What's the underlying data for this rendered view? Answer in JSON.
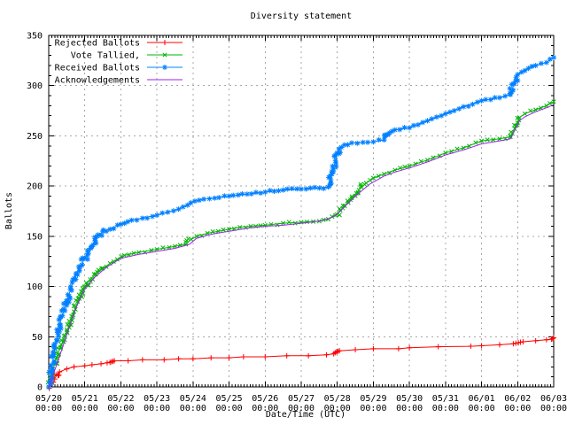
{
  "title": "Diversity statement",
  "axes": {
    "ylabel": "Ballots",
    "xlabel": "Date/Time (UTC)",
    "ylim": [
      0,
      350
    ],
    "y_tick_step": 50,
    "y_minor_step": 10,
    "x_days": [
      0,
      14
    ],
    "x_minor_per_day": 12,
    "y_ticks": [
      0,
      50,
      100,
      150,
      200,
      250,
      300,
      350
    ],
    "x_ticks": [
      {
        "date": "05/20",
        "time": "00:00"
      },
      {
        "date": "05/21",
        "time": "00:00"
      },
      {
        "date": "05/22",
        "time": "00:00"
      },
      {
        "date": "05/23",
        "time": "00:00"
      },
      {
        "date": "05/24",
        "time": "00:00"
      },
      {
        "date": "05/25",
        "time": "00:00"
      },
      {
        "date": "05/26",
        "time": "00:00"
      },
      {
        "date": "05/27",
        "time": "00:00"
      },
      {
        "date": "05/28",
        "time": "00:00"
      },
      {
        "date": "05/29",
        "time": "00:00"
      },
      {
        "date": "05/30",
        "time": "00:00"
      },
      {
        "date": "05/31",
        "time": "00:00"
      },
      {
        "date": "06/01",
        "time": "00:00"
      },
      {
        "date": "06/02",
        "time": "00:00"
      },
      {
        "date": "06/03",
        "time": "00:00"
      }
    ]
  },
  "legend": [
    {
      "label": "Rejected Ballots",
      "color": "#ff0000",
      "marker": "plus"
    },
    {
      "label": "Vote Tallied,",
      "color": "#00b400",
      "marker": "cross"
    },
    {
      "label": "Received Ballots",
      "color": "#0080ff",
      "marker": "star"
    },
    {
      "label": "Acknowledgements",
      "color": "#a020f0",
      "marker": "none"
    }
  ],
  "chart_data": {
    "type": "line",
    "title": "Diversity statement",
    "xlabel": "Date/Time (UTC)",
    "ylabel": "Ballots",
    "ylim": [
      0,
      350
    ],
    "x_unit": "days since 05/20 00:00 UTC",
    "xlim_days": [
      0,
      14
    ],
    "grid": true,
    "legend_position": "top-left",
    "series": [
      {
        "name": "Rejected Ballots",
        "color": "#ff0000",
        "marker": "plus",
        "points": [
          [
            0,
            0
          ],
          [
            0.05,
            4
          ],
          [
            0.12,
            9
          ],
          [
            0.2,
            12
          ],
          [
            0.3,
            15
          ],
          [
            0.5,
            18
          ],
          [
            0.7,
            20
          ],
          [
            1.0,
            21
          ],
          [
            1.2,
            22
          ],
          [
            1.45,
            23
          ],
          [
            1.62,
            24
          ],
          [
            1.7,
            24.5
          ],
          [
            1.74,
            25
          ],
          [
            1.78,
            25.5
          ],
          [
            1.82,
            26
          ],
          [
            2.2,
            26
          ],
          [
            2.6,
            27
          ],
          [
            3.2,
            27
          ],
          [
            3.6,
            28
          ],
          [
            4.0,
            28
          ],
          [
            4.5,
            29
          ],
          [
            5.0,
            29
          ],
          [
            5.4,
            30
          ],
          [
            6.0,
            30
          ],
          [
            6.6,
            31
          ],
          [
            7.2,
            31
          ],
          [
            7.7,
            32
          ],
          [
            7.9,
            33
          ],
          [
            7.94,
            34
          ],
          [
            7.98,
            35
          ],
          [
            8.02,
            35.5
          ],
          [
            8.06,
            36
          ],
          [
            8.5,
            37
          ],
          [
            9.0,
            38
          ],
          [
            9.7,
            38
          ],
          [
            10.0,
            39
          ],
          [
            10.8,
            40
          ],
          [
            11.7,
            40.5
          ],
          [
            12.0,
            41
          ],
          [
            12.5,
            42
          ],
          [
            12.88,
            43
          ],
          [
            12.95,
            43.5
          ],
          [
            13.02,
            44
          ],
          [
            13.08,
            44.5
          ],
          [
            13.15,
            45
          ],
          [
            13.5,
            46
          ],
          [
            13.8,
            47
          ],
          [
            13.94,
            47.5
          ],
          [
            13.97,
            48
          ],
          [
            14.0,
            49
          ]
        ]
      },
      {
        "name": "Vote Tallied,",
        "color": "#00b400",
        "marker": "cross",
        "points": [
          [
            0,
            0
          ],
          [
            0.08,
            12
          ],
          [
            0.2,
            28
          ],
          [
            0.35,
            42
          ],
          [
            0.5,
            55
          ],
          [
            0.7,
            75
          ],
          [
            0.85,
            88
          ],
          [
            1.0,
            100
          ],
          [
            1.15,
            107
          ],
          [
            1.3,
            112
          ],
          [
            1.5,
            118
          ],
          [
            1.7,
            123
          ],
          [
            1.9,
            127
          ],
          [
            2.1,
            131
          ],
          [
            2.5,
            134
          ],
          [
            3.0,
            137
          ],
          [
            3.5,
            140
          ],
          [
            3.8,
            142
          ],
          [
            3.95,
            147
          ],
          [
            4.1,
            150
          ],
          [
            4.4,
            153
          ],
          [
            4.7,
            155
          ],
          [
            5.0,
            157
          ],
          [
            5.3,
            159
          ],
          [
            5.6,
            160
          ],
          [
            6.0,
            161
          ],
          [
            6.5,
            163
          ],
          [
            7.0,
            164
          ],
          [
            7.5,
            165
          ],
          [
            7.75,
            167
          ],
          [
            7.95,
            171
          ],
          [
            8.15,
            178
          ],
          [
            8.4,
            188
          ],
          [
            8.6,
            196
          ],
          [
            8.8,
            203
          ],
          [
            9.0,
            208
          ],
          [
            9.3,
            212
          ],
          [
            9.6,
            216
          ],
          [
            10.0,
            220
          ],
          [
            10.5,
            226
          ],
          [
            11.0,
            233
          ],
          [
            11.5,
            238
          ],
          [
            12.0,
            245
          ],
          [
            12.5,
            247
          ],
          [
            12.8,
            249
          ],
          [
            12.95,
            260
          ],
          [
            13.05,
            268
          ],
          [
            13.2,
            272
          ],
          [
            13.5,
            276
          ],
          [
            13.8,
            280
          ],
          [
            14.0,
            284
          ]
        ]
      },
      {
        "name": "Received Ballots",
        "color": "#0080ff",
        "marker": "star",
        "points": [
          [
            0,
            0
          ],
          [
            0.08,
            18
          ],
          [
            0.17,
            38
          ],
          [
            0.3,
            62
          ],
          [
            0.5,
            85
          ],
          [
            0.7,
            108
          ],
          [
            0.85,
            118
          ],
          [
            1.0,
            128
          ],
          [
            1.1,
            133
          ],
          [
            1.2,
            140
          ],
          [
            1.35,
            150
          ],
          [
            1.5,
            155
          ],
          [
            1.7,
            157
          ],
          [
            2.0,
            162
          ],
          [
            2.3,
            166
          ],
          [
            2.6,
            168
          ],
          [
            3.0,
            171
          ],
          [
            3.3,
            174
          ],
          [
            3.6,
            177
          ],
          [
            3.85,
            181
          ],
          [
            4.05,
            185
          ],
          [
            4.3,
            187
          ],
          [
            4.6,
            188
          ],
          [
            5.0,
            190
          ],
          [
            5.5,
            192
          ],
          [
            6.0,
            194
          ],
          [
            6.5,
            196
          ],
          [
            7.0,
            197
          ],
          [
            7.5,
            198
          ],
          [
            7.75,
            199
          ],
          [
            7.85,
            212
          ],
          [
            7.95,
            225
          ],
          [
            8.05,
            237
          ],
          [
            8.2,
            241
          ],
          [
            8.4,
            243
          ],
          [
            9.0,
            244
          ],
          [
            9.3,
            246
          ],
          [
            9.45,
            253
          ],
          [
            9.6,
            256
          ],
          [
            10.0,
            258
          ],
          [
            10.5,
            265
          ],
          [
            11.0,
            272
          ],
          [
            11.5,
            279
          ],
          [
            12.0,
            285
          ],
          [
            12.5,
            288
          ],
          [
            12.8,
            291
          ],
          [
            12.9,
            302
          ],
          [
            13.0,
            311
          ],
          [
            13.2,
            315
          ],
          [
            13.5,
            320
          ],
          [
            13.8,
            323
          ],
          [
            14.0,
            328
          ]
        ]
      },
      {
        "name": "Acknowledgements",
        "color": "#a020f0",
        "marker": "none",
        "points": [
          [
            0,
            0
          ],
          [
            0.1,
            10
          ],
          [
            0.25,
            25
          ],
          [
            0.5,
            52
          ],
          [
            0.75,
            78
          ],
          [
            1.0,
            98
          ],
          [
            1.3,
            110
          ],
          [
            1.6,
            119
          ],
          [
            2.0,
            128
          ],
          [
            2.5,
            132
          ],
          [
            3.0,
            135
          ],
          [
            3.5,
            138
          ],
          [
            3.9,
            142
          ],
          [
            4.1,
            148
          ],
          [
            4.5,
            152
          ],
          [
            5.0,
            155
          ],
          [
            5.5,
            158
          ],
          [
            6.0,
            160
          ],
          [
            6.5,
            161
          ],
          [
            7.0,
            163
          ],
          [
            7.5,
            165
          ],
          [
            7.8,
            168
          ],
          [
            8.0,
            172
          ],
          [
            8.3,
            183
          ],
          [
            8.6,
            193
          ],
          [
            8.9,
            202
          ],
          [
            9.3,
            210
          ],
          [
            9.6,
            214
          ],
          [
            10.0,
            218
          ],
          [
            10.5,
            224
          ],
          [
            11.0,
            231
          ],
          [
            11.5,
            236
          ],
          [
            12.0,
            242
          ],
          [
            12.5,
            245
          ],
          [
            12.8,
            247
          ],
          [
            12.95,
            258
          ],
          [
            13.05,
            265
          ],
          [
            13.2,
            269
          ],
          [
            13.5,
            274
          ],
          [
            13.8,
            278
          ],
          [
            14.0,
            281
          ]
        ]
      }
    ]
  }
}
